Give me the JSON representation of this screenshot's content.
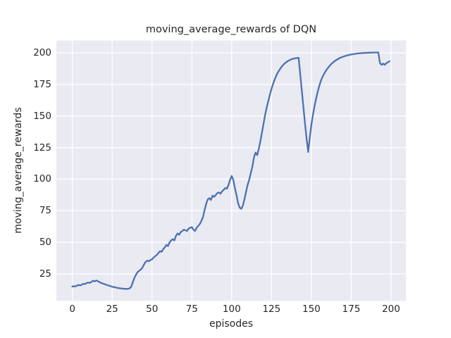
{
  "chart_data": {
    "type": "line",
    "title": "moving_average_rewards of DQN",
    "xlabel": "episodes",
    "ylabel": "moving_average_rewards",
    "x_ticks": [
      0,
      25,
      50,
      75,
      100,
      125,
      150,
      175,
      200
    ],
    "y_ticks": [
      25,
      50,
      75,
      100,
      125,
      150,
      175,
      200
    ],
    "xlim": [
      -10,
      209.3
    ],
    "ylim": [
      3.7,
      209.7
    ],
    "grid": true,
    "legend_position": "none",
    "style": "seaborn-darkgrid",
    "colors": {
      "line": "#4C72B0",
      "axes_background": "#EAEAF2",
      "grid": "#FFFFFF",
      "figure_background": "#FFFFFF",
      "text": "#262626"
    },
    "series": [
      {
        "name": "moving_average_rewards",
        "x_start": 0,
        "x_step": 1,
        "values": [
          15.0,
          15.3,
          15.1,
          15.8,
          16.2,
          15.9,
          16.5,
          17.2,
          17.0,
          17.8,
          18.1,
          17.9,
          18.7,
          19.6,
          19.1,
          19.8,
          19.3,
          18.6,
          17.9,
          17.4,
          17.0,
          16.5,
          16.1,
          15.7,
          15.3,
          14.9,
          14.6,
          14.3,
          14.0,
          13.8,
          13.6,
          13.4,
          13.3,
          13.2,
          13.1,
          13.2,
          13.6,
          15.0,
          18.5,
          22.0,
          24.5,
          26.5,
          27.5,
          28.5,
          30.0,
          32.5,
          34.5,
          35.5,
          35.0,
          36.0,
          36.5,
          38.0,
          39.0,
          40.0,
          41.5,
          43.0,
          42.5,
          44.5,
          46.0,
          48.0,
          47.0,
          50.0,
          51.5,
          52.5,
          51.5,
          55.0,
          57.0,
          56.0,
          58.0,
          59.0,
          60.0,
          59.5,
          59.0,
          61.0,
          61.5,
          62.0,
          60.0,
          59.0,
          61.5,
          63.0,
          64.5,
          67.0,
          70.0,
          75.5,
          80.5,
          84.0,
          85.0,
          83.5,
          87.0,
          86.0,
          87.5,
          89.0,
          89.5,
          88.5,
          90.5,
          91.5,
          93.0,
          92.5,
          95.5,
          99.5,
          102.5,
          99.5,
          93.0,
          87.5,
          81.0,
          77.5,
          76.5,
          79.0,
          84.0,
          90.0,
          95.5,
          99.5,
          105.0,
          110.0,
          117.5,
          121.0,
          119.0,
          124.0,
          130.0,
          137.0,
          144.0,
          151.0,
          157.0,
          162.0,
          167.0,
          171.5,
          175.5,
          179.0,
          182.0,
          184.5,
          186.5,
          188.5,
          190.0,
          191.3,
          192.4,
          193.3,
          194.0,
          194.6,
          195.1,
          195.4,
          195.7,
          195.9,
          196.0,
          183.0,
          170.0,
          157.0,
          144.0,
          132.0,
          121.5,
          133.0,
          143.0,
          151.0,
          158.0,
          164.0,
          169.5,
          174.0,
          178.0,
          181.0,
          183.5,
          185.5,
          187.5,
          189.0,
          190.5,
          191.8,
          192.8,
          193.8,
          194.6,
          195.3,
          196.0,
          196.5,
          197.0,
          197.4,
          197.8,
          198.1,
          198.4,
          198.7,
          198.9,
          199.1,
          199.3,
          199.5,
          199.6,
          199.7,
          199.8,
          199.9,
          200.0,
          200.0,
          200.1,
          200.1,
          200.2,
          200.2,
          200.3,
          200.3,
          200.3,
          192.0,
          190.5,
          191.5,
          190.5,
          191.8,
          192.5,
          193.3
        ]
      }
    ]
  }
}
